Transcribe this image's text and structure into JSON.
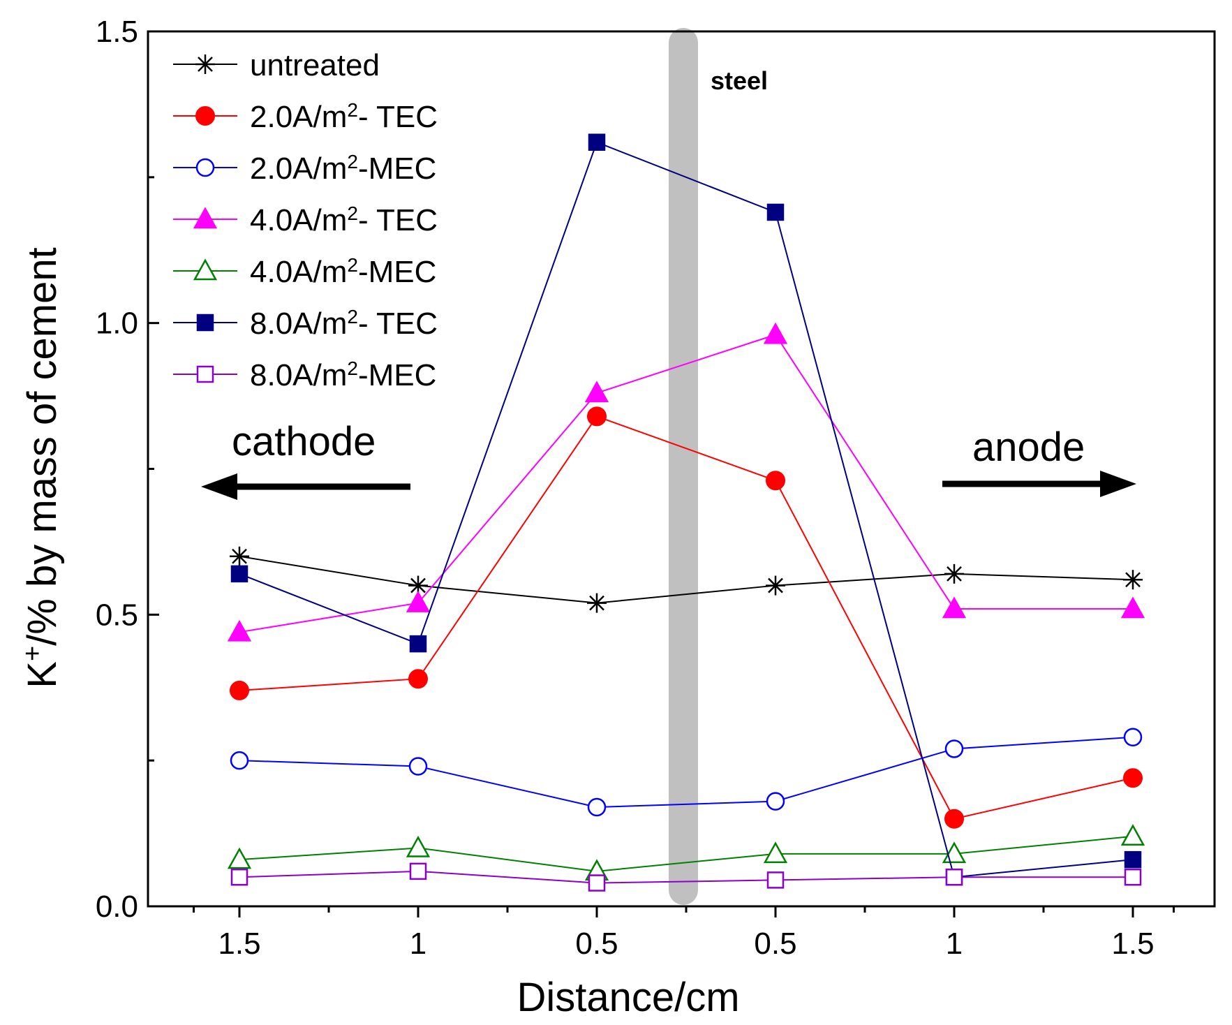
{
  "chart_data": {
    "type": "line",
    "title": "",
    "xlabel": "Distance/cm",
    "ylabel_prefix": "K",
    "ylabel_sup": "+",
    "ylabel_suffix": "/% by mass of cement",
    "x_categories": [
      "1.5",
      "1",
      "0.5",
      "0.5",
      "1",
      "1.5"
    ],
    "ylim": [
      0.0,
      1.5
    ],
    "y_ticks": [
      "0.0",
      "0.5",
      "1.0",
      "1.5"
    ],
    "grid": false,
    "legend_position": "top-left",
    "annotations": {
      "steel": "steel",
      "cathode": "cathode",
      "anode": "anode"
    },
    "series": [
      {
        "name": "untreated",
        "label_main": "untreated",
        "label_sup": "",
        "label_tail": "",
        "color": "#000000",
        "marker": "asterisk",
        "values": [
          0.6,
          0.55,
          0.52,
          0.55,
          0.57,
          0.56
        ]
      },
      {
        "name": "2.0A/m2- TEC",
        "label_main": "2.0A/m",
        "label_sup": "2",
        "label_tail": "- TEC",
        "color": "#ff0000",
        "marker": "circle-filled",
        "values": [
          0.37,
          0.39,
          0.84,
          0.73,
          0.15,
          0.22
        ]
      },
      {
        "name": "2.0A/m2-MEC",
        "label_main": "2.0A/m",
        "label_sup": "2",
        "label_tail": "-MEC",
        "color": "#0000ff",
        "marker": "circle-open",
        "values": [
          0.25,
          0.24,
          0.17,
          0.18,
          0.27,
          0.29
        ]
      },
      {
        "name": "4.0A/m2- TEC",
        "label_main": "4.0A/m",
        "label_sup": "2",
        "label_tail": "- TEC",
        "color": "#ff00ff",
        "marker": "triangle-filled",
        "values": [
          0.47,
          0.52,
          0.88,
          0.98,
          0.51,
          0.51
        ]
      },
      {
        "name": "4.0A/m2-MEC",
        "label_main": "4.0A/m",
        "label_sup": "2",
        "label_tail": "-MEC",
        "color": "#008000",
        "marker": "triangle-open",
        "values": [
          0.08,
          0.1,
          0.06,
          0.09,
          0.09,
          0.12
        ]
      },
      {
        "name": "8.0A/m2- TEC",
        "label_main": "8.0A/m",
        "label_sup": "2",
        "label_tail": "- TEC",
        "color": "#000080",
        "marker": "square-filled",
        "values": [
          0.57,
          0.45,
          1.31,
          1.19,
          0.05,
          0.08
        ]
      },
      {
        "name": "8.0A/m2-MEC",
        "label_main": "8.0A/m",
        "label_sup": "2",
        "label_tail": "-MEC",
        "color": "#8b00cc",
        "marker": "square-open",
        "values": [
          0.05,
          0.06,
          0.04,
          0.045,
          0.05,
          0.05
        ]
      }
    ]
  }
}
